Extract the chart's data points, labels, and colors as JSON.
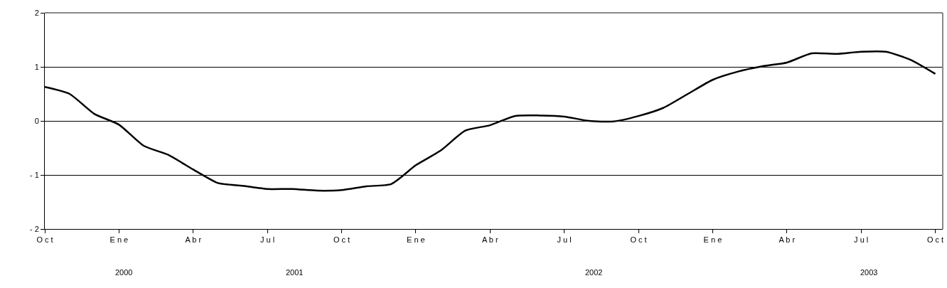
{
  "chart_data": {
    "type": "line",
    "categories": [
      "O c t",
      null,
      null,
      "E n e",
      null,
      null,
      "A b r",
      null,
      null,
      "J u l",
      null,
      null,
      "O c t",
      null,
      null,
      "E n e",
      null,
      null,
      "A b r",
      null,
      null,
      "J u l",
      null,
      null,
      "O c t",
      null,
      null,
      "E n e",
      null,
      null,
      "A b r",
      null,
      null,
      "J u l",
      null,
      null,
      "O c t"
    ],
    "series": [
      {
        "color": "#000000",
        "values": [
          0.63,
          0.5,
          0.13,
          -0.07,
          -0.46,
          -0.63,
          -0.9,
          -1.15,
          -1.2,
          -1.26,
          -1.26,
          -1.29,
          -1.28,
          -1.21,
          -1.17,
          -0.82,
          -0.55,
          -0.18,
          -0.08,
          0.09,
          0.1,
          0.08,
          0.0,
          -0.01,
          0.09,
          0.24,
          0.5,
          0.76,
          0.91,
          1.01,
          1.08,
          1.25,
          1.24,
          1.28,
          1.28,
          1.13,
          0.87
        ]
      }
    ],
    "ylim": [
      -2,
      2
    ],
    "yticks": [
      -2,
      -1,
      0,
      1,
      2
    ],
    "grid": "y",
    "marker": "none",
    "line_style": "solid",
    "annotations": [
      "2000",
      "2001",
      "2002",
      "2003"
    ]
  }
}
